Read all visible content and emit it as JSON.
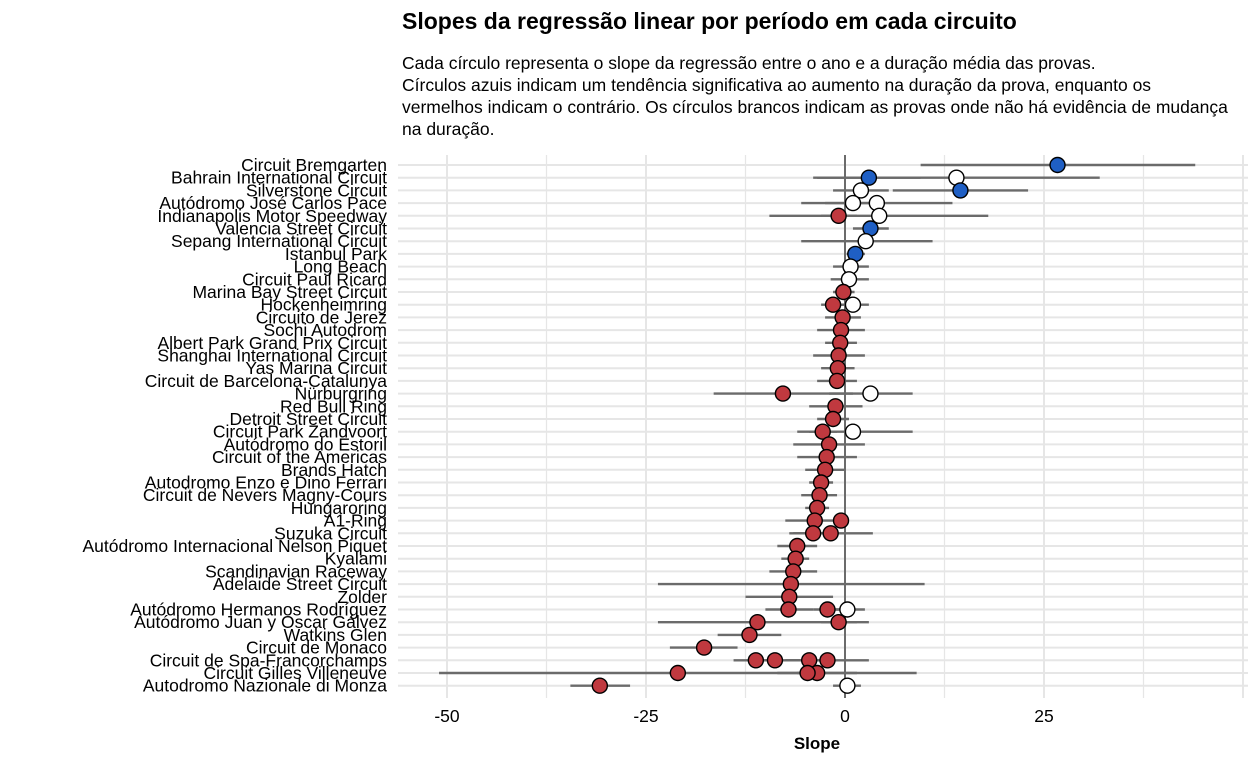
{
  "title": "Slopes da regressão linear por período em cada circuito",
  "subtitle_lines": [
    "Cada círculo representa o slope da regressão entre o ano e a duração média das provas.",
    "Círculos azuis indicam um tendência significativa ao aumento na duração da prova, enquanto os",
    "vermelhos indicam o contrário. Os círculos brancos indicam as provas onde não há evidência de mudança",
    "na duração."
  ],
  "chart_data": {
    "type": "scatter",
    "title": "Slopes da regressão linear por período em cada circuito",
    "xlabel": "Slope",
    "ylabel": "",
    "xlim": [
      -54,
      49
    ],
    "x_ticks": [
      -50,
      -25,
      0,
      25
    ],
    "grid": true,
    "legend": "none",
    "colors": {
      "increase": "#1f5fc4",
      "decrease": "#c0393f",
      "no_change": "#ffffff",
      "errorbar": "#6b6b6b",
      "gridline": "#e6e6e6",
      "zero_line": "#6b6b6b"
    },
    "categories": [
      "Circuit Bremgarten",
      "Bahrain International Circuit",
      "Silverstone Circuit",
      "Autódromo José Carlos Pace",
      "Indianapolis Motor Speedway",
      "Valencia Street Circuit",
      "Sepang International Circuit",
      "Istanbul Park",
      "Long Beach",
      "Circuit Paul Ricard",
      "Marina Bay Street Circuit",
      "Hockenheimring",
      "Circuito de Jerez",
      "Sochi Autodrom",
      "Albert Park Grand Prix Circuit",
      "Shanghai International Circuit",
      "Yas Marina Circuit",
      "Circuit de Barcelona-Catalunya",
      "Nürburgring",
      "Red Bull Ring",
      "Detroit Street Circuit",
      "Circuit Park Zandvoort",
      "Autódromo do Estoril",
      "Circuit of the Americas",
      "Brands Hatch",
      "Autodromo Enzo e Dino Ferrari",
      "Circuit de Nevers Magny-Cours",
      "Hungaroring",
      "A1-Ring",
      "Suzuka Circuit",
      "Autódromo Internacional Nelson Piquet",
      "Kyalami",
      "Scandinavian Raceway",
      "Adelaide Street Circuit",
      "Zolder",
      "Autódromo Hermanos Rodríguez",
      "Autódromo Juan y Oscar Gálvez",
      "Watkins Glen",
      "Circuit de Monaco",
      "Circuit de Spa-Francorchamps",
      "Circuit Gilles Villeneuve",
      "Autodromo Nazionale di Monza"
    ],
    "points": [
      {
        "circuit": "Circuit Bremgarten",
        "slope": 26.7,
        "low": 9.5,
        "high": 44.0,
        "status": "increase"
      },
      {
        "circuit": "Bahrain International Circuit",
        "slope": 3.0,
        "low": -3.5,
        "high": 9.5,
        "status": "increase"
      },
      {
        "circuit": "Bahrain International Circuit",
        "slope": 14.0,
        "low": -4.0,
        "high": 32.0,
        "status": "no_change"
      },
      {
        "circuit": "Silverstone Circuit",
        "slope": 14.5,
        "low": 6.0,
        "high": 23.0,
        "status": "increase"
      },
      {
        "circuit": "Silverstone Circuit",
        "slope": 2.0,
        "low": -1.5,
        "high": 5.5,
        "status": "no_change"
      },
      {
        "circuit": "Autódromo José Carlos Pace",
        "slope": 4.0,
        "low": -5.5,
        "high": 13.5,
        "status": "no_change"
      },
      {
        "circuit": "Autódromo José Carlos Pace",
        "slope": 1.0,
        "low": -2.5,
        "high": 4.5,
        "status": "no_change"
      },
      {
        "circuit": "Indianapolis Motor Speedway",
        "slope": 4.3,
        "low": -9.5,
        "high": 18.0,
        "status": "no_change"
      },
      {
        "circuit": "Indianapolis Motor Speedway",
        "slope": -0.8,
        "low": -3.0,
        "high": 1.5,
        "status": "decrease"
      },
      {
        "circuit": "Valencia Street Circuit",
        "slope": 3.2,
        "low": 1.0,
        "high": 5.5,
        "status": "increase"
      },
      {
        "circuit": "Sepang International Circuit",
        "slope": 2.6,
        "low": -5.5,
        "high": 11.0,
        "status": "no_change"
      },
      {
        "circuit": "Istanbul Park",
        "slope": 1.3,
        "low": 0.2,
        "high": 2.5,
        "status": "increase"
      },
      {
        "circuit": "Long Beach",
        "slope": 0.7,
        "low": -1.5,
        "high": 3.0,
        "status": "no_change"
      },
      {
        "circuit": "Circuit Paul Ricard",
        "slope": 0.5,
        "low": -1.8,
        "high": 3.0,
        "status": "no_change"
      },
      {
        "circuit": "Marina Bay Street Circuit",
        "slope": -0.2,
        "low": -1.5,
        "high": 1.2,
        "status": "decrease"
      },
      {
        "circuit": "Hockenheimring",
        "slope": 1.0,
        "low": -1.2,
        "high": 3.0,
        "status": "no_change"
      },
      {
        "circuit": "Hockenheimring",
        "slope": -1.5,
        "low": -3.0,
        "high": -0.2,
        "status": "decrease"
      },
      {
        "circuit": "Circuito de Jerez",
        "slope": -0.3,
        "low": -2.5,
        "high": 2.0,
        "status": "decrease"
      },
      {
        "circuit": "Sochi Autodrom",
        "slope": -0.5,
        "low": -3.5,
        "high": 2.5,
        "status": "decrease"
      },
      {
        "circuit": "Albert Park Grand Prix Circuit",
        "slope": -0.6,
        "low": -2.5,
        "high": 1.5,
        "status": "decrease"
      },
      {
        "circuit": "Shanghai International Circuit",
        "slope": -0.8,
        "low": -4.0,
        "high": 2.5,
        "status": "decrease"
      },
      {
        "circuit": "Yas Marina Circuit",
        "slope": -0.9,
        "low": -3.0,
        "high": 1.2,
        "status": "decrease"
      },
      {
        "circuit": "Circuit de Barcelona-Catalunya",
        "slope": -1.0,
        "low": -3.5,
        "high": 1.5,
        "status": "decrease"
      },
      {
        "circuit": "Nürburgring",
        "slope": 3.2,
        "low": -2.0,
        "high": 8.5,
        "status": "no_change"
      },
      {
        "circuit": "Nürburgring",
        "slope": -7.8,
        "low": -16.5,
        "high": 1.0,
        "status": "decrease"
      },
      {
        "circuit": "Red Bull Ring",
        "slope": -1.2,
        "low": -4.5,
        "high": 2.2,
        "status": "decrease"
      },
      {
        "circuit": "Detroit Street Circuit",
        "slope": -1.5,
        "low": -3.5,
        "high": 0.5,
        "status": "decrease"
      },
      {
        "circuit": "Circuit Park Zandvoort",
        "slope": 1.0,
        "low": -6.0,
        "high": 8.5,
        "status": "no_change"
      },
      {
        "circuit": "Circuit Park Zandvoort",
        "slope": -2.8,
        "low": -4.5,
        "high": -1.0,
        "status": "decrease"
      },
      {
        "circuit": "Autódromo do Estoril",
        "slope": -2.0,
        "low": -6.5,
        "high": 2.5,
        "status": "decrease"
      },
      {
        "circuit": "Circuit of the Americas",
        "slope": -2.3,
        "low": -6.0,
        "high": 1.5,
        "status": "decrease"
      },
      {
        "circuit": "Brands Hatch",
        "slope": -2.5,
        "low": -5.0,
        "high": 0.0,
        "status": "decrease"
      },
      {
        "circuit": "Autodromo Enzo e Dino Ferrari",
        "slope": -3.0,
        "low": -4.5,
        "high": -1.5,
        "status": "decrease"
      },
      {
        "circuit": "Circuit de Nevers Magny-Cours",
        "slope": -3.2,
        "low": -5.5,
        "high": -1.0,
        "status": "decrease"
      },
      {
        "circuit": "Hungaroring",
        "slope": -3.5,
        "low": -5.0,
        "high": -2.0,
        "status": "decrease"
      },
      {
        "circuit": "A1-Ring",
        "slope": -0.5,
        "low": -1.5,
        "high": 0.5,
        "status": "decrease"
      },
      {
        "circuit": "A1-Ring",
        "slope": -3.8,
        "low": -7.5,
        "high": 0.0,
        "status": "decrease"
      },
      {
        "circuit": "Suzuka Circuit",
        "slope": -1.8,
        "low": -7.0,
        "high": 3.5,
        "status": "decrease"
      },
      {
        "circuit": "Suzuka Circuit",
        "slope": -4.0,
        "low": -6.5,
        "high": -1.5,
        "status": "decrease"
      },
      {
        "circuit": "Autódromo Internacional Nelson Piquet",
        "slope": -6.0,
        "low": -8.5,
        "high": -3.5,
        "status": "decrease"
      },
      {
        "circuit": "Kyalami",
        "slope": -6.2,
        "low": -8.0,
        "high": -4.5,
        "status": "decrease"
      },
      {
        "circuit": "Scandinavian Raceway",
        "slope": -6.5,
        "low": -9.5,
        "high": -3.5,
        "status": "decrease"
      },
      {
        "circuit": "Adelaide Street Circuit",
        "slope": -6.8,
        "low": -23.5,
        "high": 10.0,
        "status": "decrease"
      },
      {
        "circuit": "Zolder",
        "slope": -7.0,
        "low": -12.5,
        "high": -1.5,
        "status": "decrease"
      },
      {
        "circuit": "Autódromo Hermanos Rodríguez",
        "slope": 0.3,
        "low": -1.5,
        "high": 2.5,
        "status": "no_change"
      },
      {
        "circuit": "Autódromo Hermanos Rodríguez",
        "slope": -2.2,
        "low": -4.0,
        "high": -0.5,
        "status": "decrease"
      },
      {
        "circuit": "Autódromo Hermanos Rodríguez",
        "slope": -7.1,
        "low": -10.0,
        "high": -4.0,
        "status": "decrease"
      },
      {
        "circuit": "Autódromo Juan y Oscar Gálvez",
        "slope": -0.8,
        "low": -3.0,
        "high": 1.5,
        "status": "decrease"
      },
      {
        "circuit": "Autódromo Juan y Oscar Gálvez",
        "slope": -11.0,
        "low": -23.5,
        "high": 3.0,
        "status": "decrease"
      },
      {
        "circuit": "Watkins Glen",
        "slope": -12.0,
        "low": -16.0,
        "high": -8.0,
        "status": "decrease"
      },
      {
        "circuit": "Circuit de Monaco",
        "slope": -17.7,
        "low": -22.0,
        "high": -13.5,
        "status": "decrease"
      },
      {
        "circuit": "Circuit de Spa-Francorchamps",
        "slope": -2.2,
        "low": -7.5,
        "high": 3.0,
        "status": "decrease"
      },
      {
        "circuit": "Circuit de Spa-Francorchamps",
        "slope": -4.5,
        "low": -7.0,
        "high": -2.0,
        "status": "decrease"
      },
      {
        "circuit": "Circuit de Spa-Francorchamps",
        "slope": -8.8,
        "low": -12.0,
        "high": -5.5,
        "status": "decrease"
      },
      {
        "circuit": "Circuit de Spa-Francorchamps",
        "slope": -11.2,
        "low": -14.0,
        "high": -8.5,
        "status": "decrease"
      },
      {
        "circuit": "Circuit Gilles Villeneuve",
        "slope": -3.5,
        "low": -8.5,
        "high": 1.5,
        "status": "decrease"
      },
      {
        "circuit": "Circuit Gilles Villeneuve",
        "slope": -4.7,
        "low": -6.0,
        "high": -3.5,
        "status": "decrease"
      },
      {
        "circuit": "Circuit Gilles Villeneuve",
        "slope": -21.0,
        "low": -51.0,
        "high": 9.0,
        "status": "decrease"
      },
      {
        "circuit": "Autodromo Nazionale di Monza",
        "slope": 0.3,
        "low": -1.5,
        "high": 2.0,
        "status": "no_change"
      },
      {
        "circuit": "Autodromo Nazionale di Monza",
        "slope": -30.8,
        "low": -34.5,
        "high": -27.0,
        "status": "decrease"
      }
    ]
  }
}
